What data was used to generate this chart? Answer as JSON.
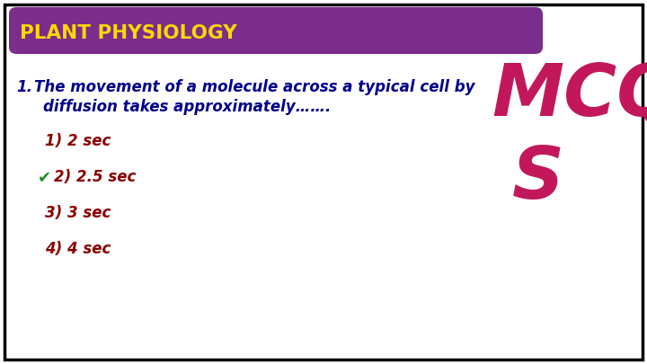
{
  "title": "PLANT PHYSIOLOGY",
  "title_bg_color": "#7B2D8B",
  "title_text_color": "#FFD700",
  "border_color": "#000000",
  "bg_color": "#FFFFFF",
  "question_number": "1.",
  "question_text_line1": "The movement of a molecule across a typical cell by",
  "question_text_line2": "diffusion takes approximately…….",
  "question_color": "#00008B",
  "options": [
    {
      "label": "1) 2 sec",
      "correct": false
    },
    {
      "label": "2) 2.5 sec",
      "correct": true
    },
    {
      "label": "3) 3 sec",
      "correct": false
    },
    {
      "label": "4) 4 sec",
      "correct": false
    }
  ],
  "option_color": "#8B0000",
  "checkmark_color": "#228B22",
  "mcq_text": "MCQ",
  "mcqs_text": "S",
  "mcq_color": "#C2185B",
  "figsize": [
    7.2,
    4.05
  ],
  "dpi": 100
}
